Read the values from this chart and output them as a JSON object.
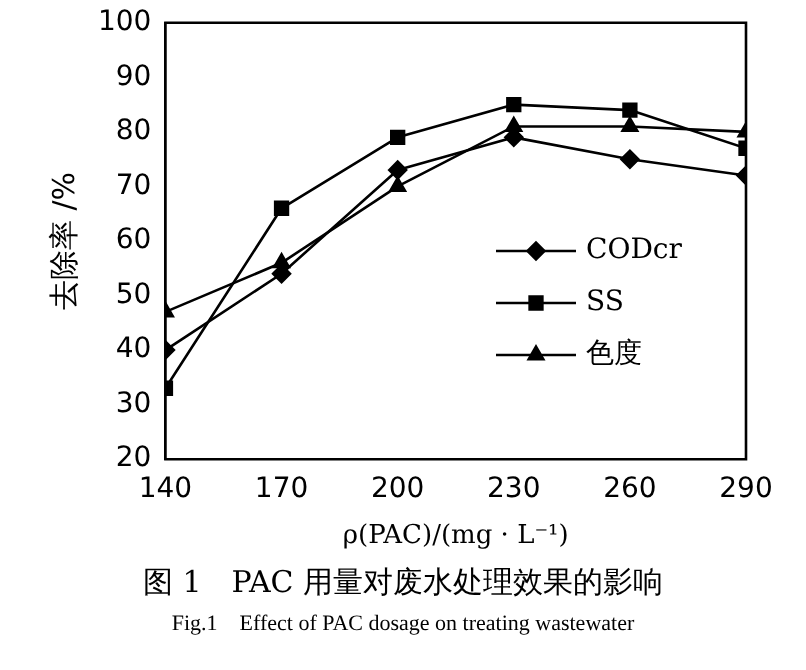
{
  "chart_data": {
    "type": "line",
    "title": "图 1　PAC 用量对废水处理效果的影响",
    "subtitle": "Fig.1　Effect of PAC dosage on treating wastewater",
    "xlabel": "ρ(PAC)/(mg · L⁻¹)",
    "ylabel": "去除率 /%",
    "x": [
      140,
      170,
      200,
      230,
      260,
      290
    ],
    "series": [
      {
        "name": "CODcr",
        "color": "#000000",
        "marker": "diamond",
        "values": [
          40,
          54,
          73,
          79,
          75,
          72
        ]
      },
      {
        "name": "SS",
        "color": "#000000",
        "marker": "square",
        "values": [
          33,
          66,
          79,
          85,
          84,
          77
        ]
      },
      {
        "name": "色度",
        "color": "#000000",
        "marker": "triangle",
        "values": [
          47,
          56,
          70,
          81,
          81,
          80
        ]
      }
    ],
    "xlim": [
      140,
      290
    ],
    "xticks": [
      140,
      170,
      200,
      230,
      260,
      290
    ],
    "ylim": [
      20,
      100
    ],
    "yticks": [
      20,
      30,
      40,
      50,
      60,
      70,
      80,
      90,
      100
    ],
    "grid": false,
    "legend": "right",
    "line_style": "solid"
  }
}
